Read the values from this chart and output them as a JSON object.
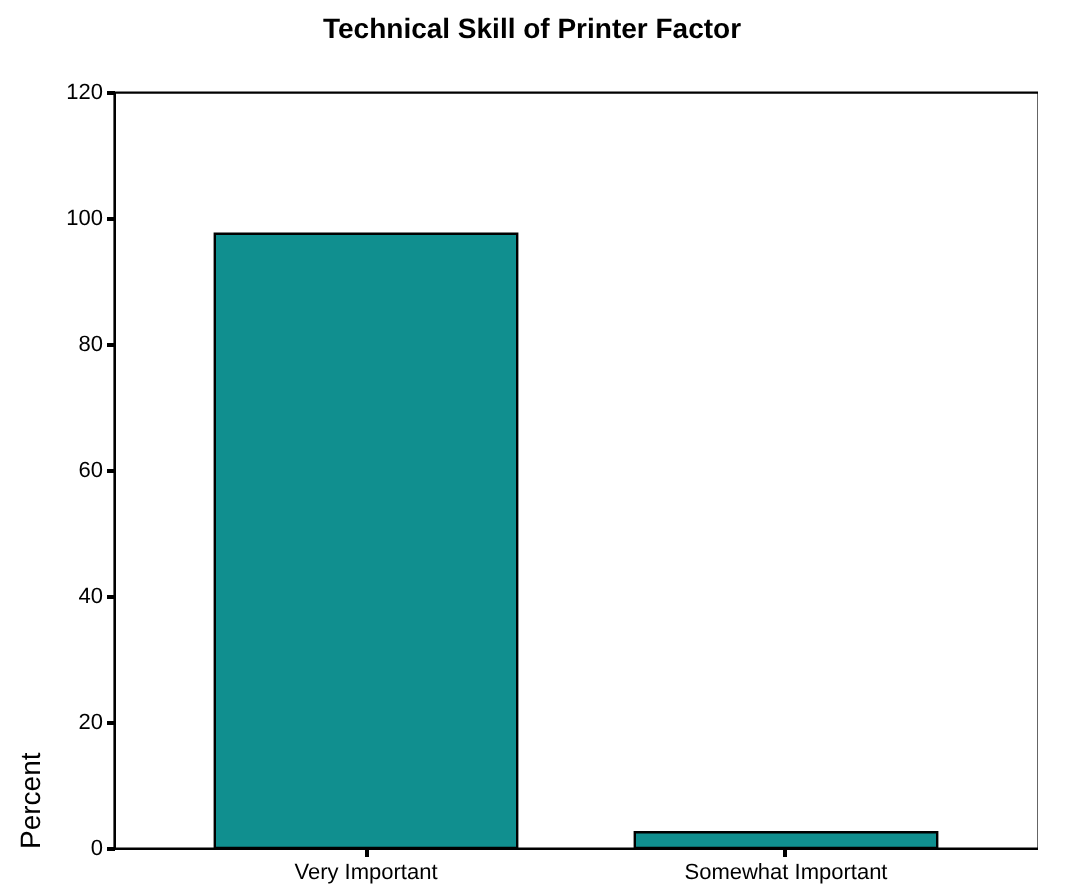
{
  "chart_data": {
    "type": "bar",
    "title": "Technical Skill of Printer Factor",
    "ylabel": "Percent",
    "categories": [
      "Very Important",
      "Somewhat Important"
    ],
    "values": [
      97.5,
      2.5
    ],
    "color": "#108f8f",
    "ylim": [
      0,
      120
    ],
    "yticks": [
      0,
      20,
      40,
      60,
      80,
      100,
      120
    ],
    "grid": false
  }
}
